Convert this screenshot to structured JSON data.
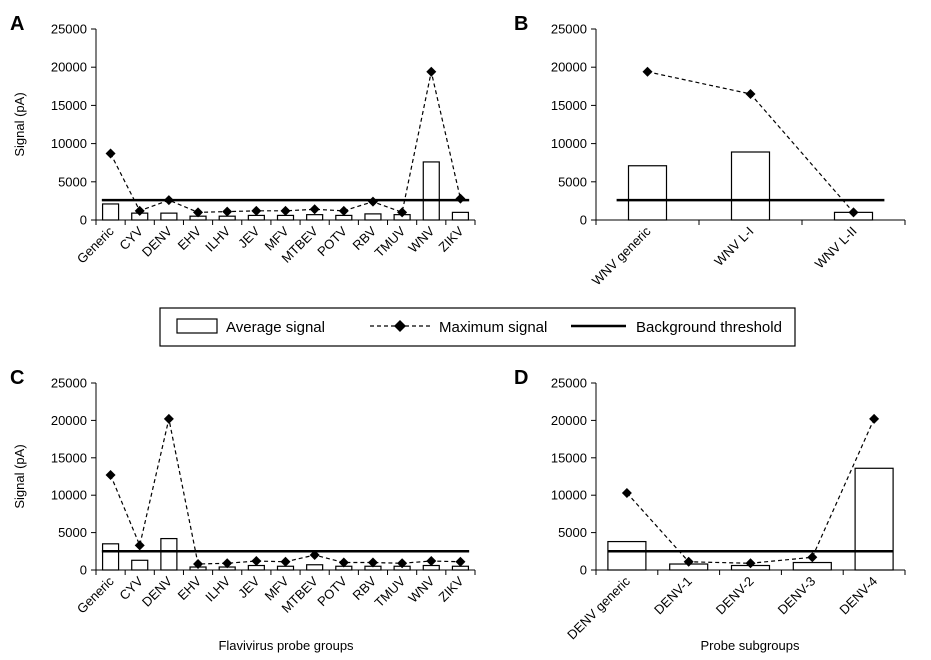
{
  "legend": {
    "average": "Average signal",
    "maximum": "Maximum signal",
    "threshold": "Background threshold"
  },
  "chart_data": [
    {
      "panel": "A",
      "type": "bar",
      "ylabel": "Signal (pA)",
      "xlabel": "",
      "ylim": [
        0,
        25000
      ],
      "yticks": [
        0,
        5000,
        10000,
        15000,
        20000,
        25000
      ],
      "categories": [
        "Generic",
        "CYV",
        "DENV",
        "EHV",
        "ILHV",
        "JEV",
        "MFV",
        "MTBEV",
        "POTV",
        "RBV",
        "TMUV",
        "WNV",
        "ZIKV"
      ],
      "series": [
        {
          "name": "Average signal",
          "type": "bar",
          "values": [
            2100,
            900,
            900,
            500,
            500,
            600,
            600,
            700,
            600,
            800,
            700,
            7600,
            1000
          ]
        },
        {
          "name": "Maximum signal",
          "type": "line",
          "values": [
            8700,
            1200,
            2600,
            1000,
            1100,
            1200,
            1200,
            1400,
            1200,
            2400,
            1000,
            19400,
            2800
          ]
        },
        {
          "name": "Background threshold",
          "type": "hline",
          "value": 2600
        }
      ]
    },
    {
      "panel": "B",
      "type": "bar",
      "ylabel": "",
      "xlabel": "",
      "ylim": [
        0,
        25000
      ],
      "yticks": [
        0,
        5000,
        10000,
        15000,
        20000,
        25000
      ],
      "categories": [
        "WNV generic",
        "WNV L-I",
        "WNV L-II"
      ],
      "series": [
        {
          "name": "Average signal",
          "type": "bar",
          "values": [
            7100,
            8900,
            1000
          ]
        },
        {
          "name": "Maximum signal",
          "type": "line",
          "values": [
            19400,
            16500,
            1000
          ]
        },
        {
          "name": "Background threshold",
          "type": "hline",
          "value": 2600
        }
      ]
    },
    {
      "panel": "C",
      "type": "bar",
      "ylabel": "Signal (pA)",
      "xlabel": "Flavivirus probe groups",
      "ylim": [
        0,
        25000
      ],
      "yticks": [
        0,
        5000,
        10000,
        15000,
        20000,
        25000
      ],
      "categories": [
        "Generic",
        "CYV",
        "DENV",
        "EHV",
        "ILHV",
        "JEV",
        "MFV",
        "MTBEV",
        "POTV",
        "RBV",
        "TMUV",
        "WNV",
        "ZIKV"
      ],
      "series": [
        {
          "name": "Average signal",
          "type": "bar",
          "values": [
            3500,
            1300,
            4200,
            400,
            400,
            600,
            500,
            700,
            500,
            500,
            500,
            600,
            500
          ]
        },
        {
          "name": "Maximum signal",
          "type": "line",
          "values": [
            12700,
            3300,
            20200,
            800,
            900,
            1200,
            1100,
            2000,
            1000,
            1000,
            900,
            1200,
            1100
          ]
        },
        {
          "name": "Background threshold",
          "type": "hline",
          "value": 2500
        }
      ]
    },
    {
      "panel": "D",
      "type": "bar",
      "ylabel": "",
      "xlabel": "Probe subgroups",
      "ylim": [
        0,
        25000
      ],
      "yticks": [
        0,
        5000,
        10000,
        15000,
        20000,
        25000
      ],
      "categories": [
        "DENV generic",
        "DENV-1",
        "DENV-2",
        "DENV-3",
        "DENV-4"
      ],
      "series": [
        {
          "name": "Average signal",
          "type": "bar",
          "values": [
            3800,
            800,
            600,
            1000,
            13600
          ]
        },
        {
          "name": "Maximum signal",
          "type": "line",
          "values": [
            10300,
            1100,
            900,
            1700,
            20200
          ]
        },
        {
          "name": "Background threshold",
          "type": "hline",
          "value": 2500
        }
      ]
    }
  ]
}
